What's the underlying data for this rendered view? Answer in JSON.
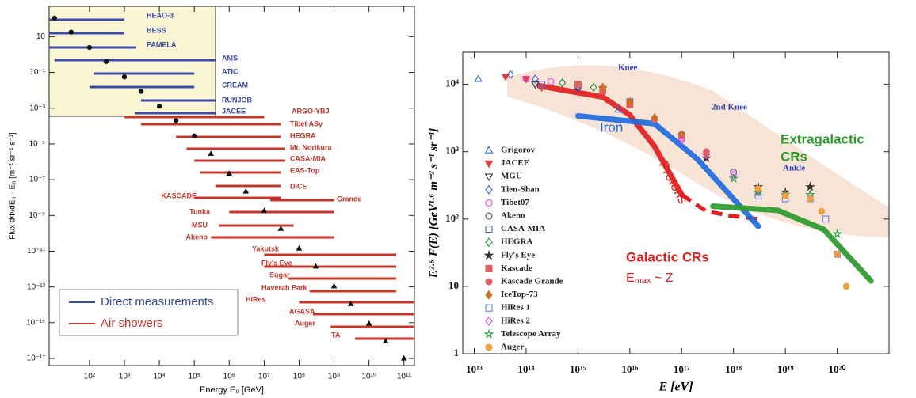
{
  "chart_data": [
    {
      "type": "scatter",
      "x_label": "Energy E₀ [GeV]",
      "y_label": "Flux dΦ/dE₀ · E₀ [m⁻² sr⁻¹ s⁻¹]",
      "xlog": true,
      "ylog": true,
      "xlim": [
        7,
        200000000000
      ],
      "ylim": [
        4e-18,
        500
      ],
      "xticks": [
        {
          "value": 100,
          "label": "10²"
        },
        {
          "value": 1000,
          "label": "10³"
        },
        {
          "value": 10000,
          "label": "10⁴"
        },
        {
          "value": 100000,
          "label": "10⁵"
        },
        {
          "value": 1000000,
          "label": "10⁶"
        },
        {
          "value": 10000000,
          "label": "10⁷"
        },
        {
          "value": 100000000,
          "label": "10⁸"
        },
        {
          "value": 1000000000,
          "label": "10⁹"
        },
        {
          "value": 10000000000,
          "label": "10¹⁰"
        },
        {
          "value": 100000000000,
          "label": "10¹¹"
        }
      ],
      "yticks": [
        10,
        {
          "value": 0.1,
          "label": "10⁻¹"
        },
        {
          "value": 0.001,
          "label": "10⁻³"
        },
        {
          "value": 1e-05,
          "label": "10⁻⁵"
        },
        {
          "value": 1e-07,
          "label": "10⁻⁷"
        },
        {
          "value": 1e-09,
          "label": "10⁻⁹"
        },
        {
          "value": 1e-11,
          "label": "10⁻¹¹"
        },
        {
          "value": 1e-13,
          "label": "10⁻¹³"
        },
        {
          "value": 1e-15,
          "label": "10⁻¹⁵"
        },
        {
          "value": 1e-17,
          "label": "10⁻¹⁷"
        }
      ],
      "series": [
        {
          "color": "#111111",
          "marker": "circle",
          "filled": true,
          "x": [
            10,
            30,
            100,
            300,
            1000,
            3000,
            10000,
            30000,
            100000
          ],
          "values": [
            110,
            18,
            2.5,
            0.41,
            0.056,
            0.0088,
            0.0013,
            0.0002,
            2.8e-05
          ]
        },
        {
          "color": "#111111",
          "marker": "triangle-up",
          "filled": true,
          "x": [
            300000,
            1000000,
            3000000,
            10000000,
            30000000,
            100000000,
            300000000,
            1000000000,
            3000000000,
            10000000000,
            30000000000,
            100000000000
          ],
          "values": [
            2.8e-06,
            2.2e-07,
            2.2e-08,
            1.8e-09,
            1.8e-10,
            1.4e-11,
            1.4e-12,
            1.1e-13,
            1.1e-14,
            9e-16,
            9e-17,
            1e-17
          ]
        }
      ],
      "legend": "lower left",
      "experiment_groups": [
        {
          "name": "Direct measurements",
          "color": "#3a4ba8",
          "experiments": [
            {
              "name": "HEAO-3",
              "range": [
                7,
                1000
              ]
            },
            {
              "name": "BESS",
              "range": [
                7,
                1000
              ]
            },
            {
              "name": "PAMELA",
              "range": [
                7,
                2200
              ]
            },
            {
              "name": "AMS",
              "range": [
                10,
                400000
              ]
            },
            {
              "name": "ATIC",
              "range": [
                130,
                100000
              ]
            },
            {
              "name": "CREAM",
              "range": [
                100,
                100000
              ]
            },
            {
              "name": "RUNJOB",
              "range": [
                3000,
                400000
              ]
            },
            {
              "name": "JACEE",
              "range": [
                2000,
                400000
              ]
            }
          ]
        },
        {
          "name": "Air showers",
          "color": "#c8372d",
          "experiments": [
            {
              "name": "ARGO-YBJ",
              "range": [
                1000,
                10000000
              ]
            },
            {
              "name": "Tibet ASγ",
              "range": [
                3000,
                30000000
              ]
            },
            {
              "name": "HEGRA",
              "range": [
                30000,
                30000000
              ]
            },
            {
              "name": "Mt. Norikura",
              "range": [
                60000,
                40000000
              ]
            },
            {
              "name": "CASA-MIA",
              "range": [
                100000,
                40000000
              ]
            },
            {
              "name": "EAS-Top",
              "range": [
                150000,
                30000000
              ]
            },
            {
              "name": "DICE",
              "range": [
                400000,
                30000000
              ]
            },
            {
              "name": "KASCADE",
              "range": [
                100000,
                30000000
              ]
            },
            {
              "name": "Grande",
              "range": [
                15000000,
                1000000000
              ]
            },
            {
              "name": "Tunka",
              "range": [
                1000000,
                1000000000
              ]
            },
            {
              "name": "MSU",
              "range": [
                500000,
                70000000
              ]
            },
            {
              "name": "Akeno",
              "range": [
                300000,
                1000000000
              ]
            },
            {
              "name": "Yakutsk",
              "range": [
                10000000,
                60000000000
              ]
            },
            {
              "name": "Fly's Eye",
              "range": [
                10000000,
                60000000000
              ]
            },
            {
              "name": "Sugar",
              "range": [
                50000000,
                60000000000
              ]
            },
            {
              "name": "Haverah Park",
              "range": [
                200000000,
                60000000000
              ]
            },
            {
              "name": "HiRes",
              "range": [
                100000000,
                200000000000
              ]
            },
            {
              "name": "AGASA",
              "range": [
                250000000,
                200000000000
              ]
            },
            {
              "name": "Auger",
              "range": [
                800000000,
                200000000000
              ]
            },
            {
              "name": "TA",
              "range": [
                4000000000,
                200000000000
              ]
            }
          ]
        }
      ]
    },
    {
      "type": "scatter",
      "x_label": "E  [eV]",
      "y_label": "E²·⁶ F(E) [GeV¹·⁶ m⁻² s⁻¹ sr⁻¹]",
      "xlog": true,
      "ylog": true,
      "xlim": [
        6000000000000.0,
        1e+21
      ],
      "ylim": [
        1,
        30000
      ],
      "xticks": [
        {
          "value": 10000000000000.0,
          "label": "10¹³"
        },
        {
          "value": 100000000000000.0,
          "label": "10¹⁴"
        },
        {
          "value": 1000000000000000.0,
          "label": "10¹⁵"
        },
        {
          "value": 1e+16,
          "label": "10¹⁶"
        },
        {
          "value": 1e+17,
          "label": "10¹⁷"
        },
        {
          "value": 1e+18,
          "label": "10¹⁸"
        },
        {
          "value": 1e+19,
          "label": "10¹⁹"
        },
        {
          "value": 1e+20,
          "label": "10²⁰"
        }
      ],
      "yticks": [
        1,
        10,
        {
          "value": 100,
          "label": "10²"
        },
        {
          "value": 1000,
          "label": "10³"
        },
        {
          "value": 10000,
          "label": "10⁴"
        }
      ],
      "legend": "center left",
      "series": [
        {
          "name": "Grigorov",
          "color": "#3a6fd8",
          "marker": "triangle-up",
          "filled": false,
          "x": [
            12000000000000.0,
            6000000000000000.0
          ],
          "values": [
            12000,
            4200
          ]
        },
        {
          "name": "JACEE",
          "color": "#e04040",
          "marker": "triangle-down",
          "filled": true,
          "x": [
            40000000000000.0,
            100000000000000.0,
            200000000000000.0
          ],
          "values": [
            13000,
            12000,
            9000
          ]
        },
        {
          "name": "MGU",
          "color": "#333333",
          "marker": "triangle-down",
          "filled": false,
          "x": [
            150000000000000.0,
            1000000000000000.0,
            3000000000000000.0
          ],
          "values": [
            10000,
            9000,
            8500
          ]
        },
        {
          "name": "Tien-Shan",
          "color": "#3a5fd8",
          "marker": "diamond",
          "filled": false,
          "x": [
            50000000000000.0,
            150000000000000.0,
            500000000000000.0
          ],
          "values": [
            14000,
            12000,
            10500
          ]
        },
        {
          "name": "Tibet07",
          "color": "#e040e0",
          "marker": "circle",
          "filled": false,
          "x": [
            100000000000000.0,
            300000000000000.0,
            1000000000000000.0,
            3000000000000000.0,
            1e+16,
            3e+16,
            1e+17
          ],
          "values": [
            12000,
            11000,
            10000,
            8000,
            5000,
            3000,
            1600
          ]
        },
        {
          "name": "Akeno",
          "color": "#405080",
          "marker": "circle",
          "filled": false,
          "x": [
            1000000000000000.0,
            1e+16,
            1e+17,
            1e+18
          ],
          "values": [
            9000,
            5000,
            1800,
            500
          ]
        },
        {
          "name": "CASA-MIA",
          "color": "#5060d0",
          "marker": "square",
          "filled": false,
          "x": [
            200000000000000.0,
            1000000000000000.0,
            1e+16
          ],
          "values": [
            10000,
            9500,
            5500
          ]
        },
        {
          "name": "HEGRA",
          "color": "#20a040",
          "marker": "diamond",
          "filled": false,
          "x": [
            500000000000000.0,
            2000000000000000.0
          ],
          "values": [
            10500,
            9000
          ]
        },
        {
          "name": "Fly's Eye",
          "color": "#333333",
          "marker": "star",
          "filled": true,
          "x": [
            3e+17,
            3e+18,
            1e+19,
            3e+19
          ],
          "values": [
            800,
            300,
            250,
            300
          ]
        },
        {
          "name": "Kascade",
          "color": "#e06060",
          "marker": "square",
          "filled": true,
          "x": [
            1000000000000000.0,
            3000000000000000.0,
            1e+16
          ],
          "values": [
            10000,
            8000,
            5000
          ]
        },
        {
          "name": "Kascade Grande",
          "color": "#e06060",
          "marker": "circle",
          "filled": true,
          "x": [
            3e+16,
            1e+17,
            3e+17
          ],
          "values": [
            3000,
            1700,
            1000
          ]
        },
        {
          "name": "IceTop-73",
          "color": "#d07020",
          "marker": "diamond",
          "filled": true,
          "x": [
            3000000000000000.0,
            1e+16,
            3e+16,
            1e+17,
            3e+17
          ],
          "values": [
            9000,
            5500,
            3200,
            1800,
            900
          ]
        },
        {
          "name": "HiRes 1",
          "color": "#6080e0",
          "marker": "square",
          "filled": false,
          "x": [
            3e+18,
            1e+19,
            3e+19,
            6e+19,
            1e+20
          ],
          "values": [
            220,
            200,
            200,
            100,
            30
          ]
        },
        {
          "name": "HiRes 2",
          "color": "#e040f0",
          "marker": "diamond",
          "filled": false,
          "x": [
            1e+17,
            3e+17,
            1e+18,
            3e+18
          ],
          "values": [
            1500,
            900,
            450,
            250
          ]
        },
        {
          "name": "Telescope Array",
          "color": "#20a040",
          "marker": "star",
          "filled": false,
          "x": [
            1e+18,
            3e+18,
            1e+19,
            3e+19,
            1e+20
          ],
          "values": [
            400,
            250,
            230,
            230,
            60
          ]
        },
        {
          "name": "Auger",
          "color": "#f0a040",
          "marker": "circle",
          "filled": true,
          "x": [
            3e+18,
            1e+19,
            3e+19,
            5e+19,
            1e+20,
            1.5e+20
          ],
          "values": [
            280,
            220,
            200,
            130,
            30,
            10
          ]
        }
      ],
      "curves": [
        {
          "label": "Protons",
          "color": "#e02020",
          "x": [
            180000000000000.0,
            3000000000000000.0,
            1e+16,
            3e+16,
            1e+17
          ],
          "values": [
            9500,
            6500,
            3500,
            1200,
            230
          ],
          "extension": {
            "x": [
              1e+17,
              3e+17,
              1e+18,
              3e+18
            ],
            "values": [
              230,
              130,
              110,
              100
            ]
          }
        },
        {
          "label": "Iron",
          "color": "#1e6be0",
          "x": [
            1000000000000000.0,
            3e+16,
            2e+17,
            3e+18
          ],
          "values": [
            3400,
            2600,
            780,
            78
          ]
        },
        {
          "label": [
            "Extragalactic",
            "CRs"
          ],
          "color": "#2a9a2a",
          "x": [
            4e+17,
            7e+18,
            5.5e+19,
            4.5e+20
          ],
          "values": [
            155,
            135,
            70,
            12
          ]
        }
      ],
      "annotations": [
        {
          "text": "Knee",
          "color": "#3040c0"
        },
        {
          "text": "2nd Knee",
          "color": "#3040c0"
        },
        {
          "text": "Ankle",
          "color": "#3040c0"
        },
        {
          "text": "Galactic CRs",
          "color": "#e02020"
        }
      ],
      "note": [
        "E",
        "max",
        " ~ Z"
      ]
    }
  ]
}
